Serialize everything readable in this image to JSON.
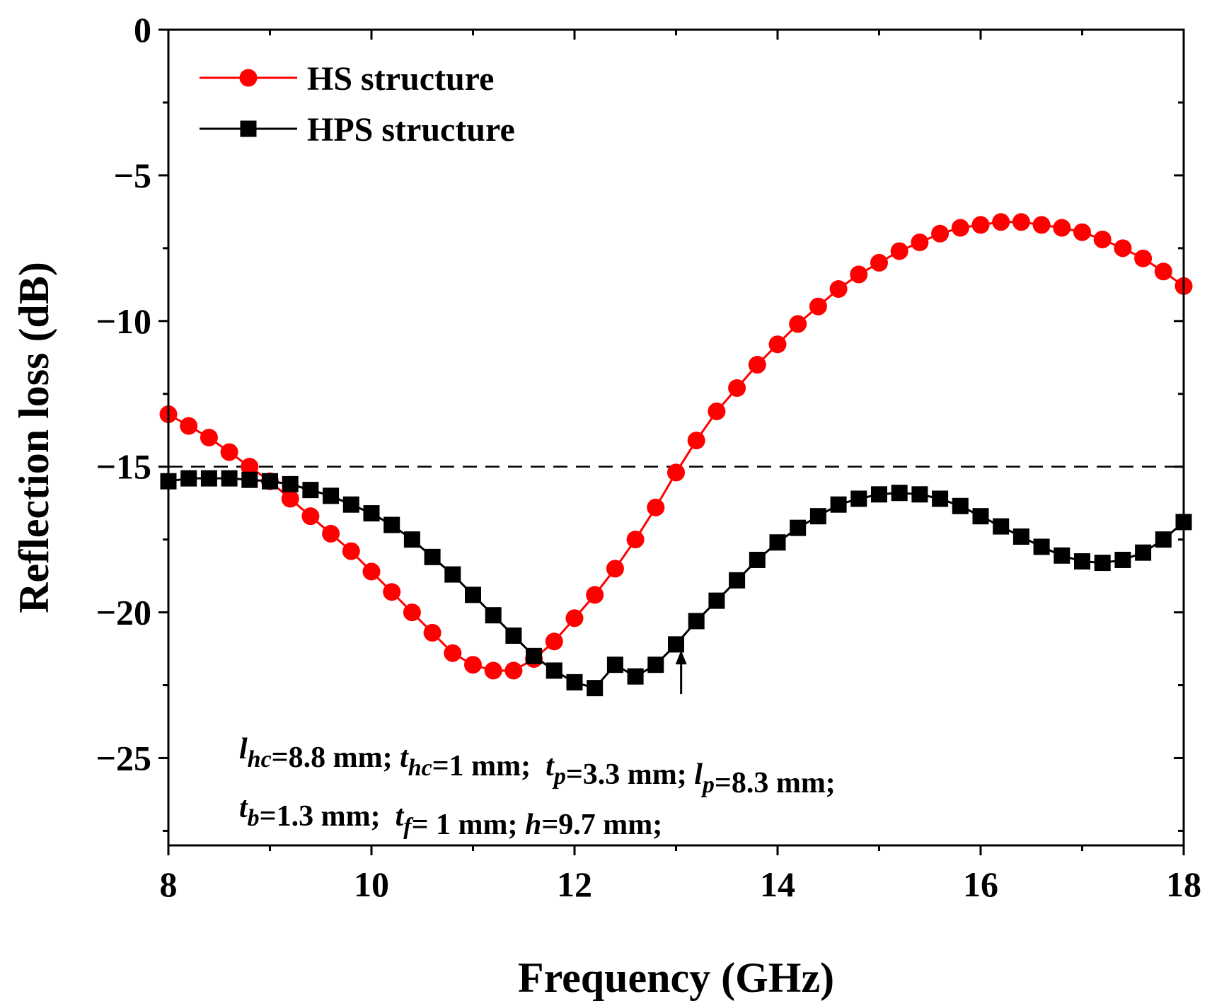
{
  "chart_data": {
    "type": "line",
    "xlabel": "Frequency (GHz)",
    "ylabel": "Reflection loss (dB)",
    "xlim": [
      8,
      18
    ],
    "ylim": [
      -28,
      0
    ],
    "xticks": [
      8,
      10,
      12,
      14,
      16,
      18
    ],
    "xtick_labels": [
      "8",
      "10",
      "12",
      "14",
      "16",
      "18"
    ],
    "yticks": [
      0,
      -5,
      -10,
      -15,
      -20,
      -25
    ],
    "ytick_labels": [
      "0",
      "−5",
      "−10",
      "−15",
      "−20",
      "−25"
    ],
    "reference_line": {
      "y": -15,
      "style": "dashed",
      "color": "#000000"
    },
    "legend_position": "top-left",
    "colors": {
      "hs": "#ff0000",
      "hps": "#000000"
    },
    "series": [
      {
        "name": "HS structure",
        "marker": "circle",
        "x": [
          8.0,
          8.2,
          8.4,
          8.6,
          8.8,
          9.0,
          9.2,
          9.4,
          9.6,
          9.8,
          10.0,
          10.2,
          10.4,
          10.6,
          10.8,
          11.0,
          11.2,
          11.4,
          11.6,
          11.8,
          12.0,
          12.2,
          12.4,
          12.6,
          12.8,
          13.0,
          13.2,
          13.4,
          13.6,
          13.8,
          14.0,
          14.2,
          14.4,
          14.6,
          14.8,
          15.0,
          15.2,
          15.4,
          15.6,
          15.8,
          16.0,
          16.2,
          16.4,
          16.6,
          16.8,
          17.0,
          17.2,
          17.4,
          17.6,
          17.8,
          18.0
        ],
        "values": [
          -13.2,
          -13.6,
          -14.0,
          -14.5,
          -15.0,
          -15.5,
          -16.1,
          -16.7,
          -17.3,
          -17.9,
          -18.6,
          -19.3,
          -20.0,
          -20.7,
          -21.4,
          -21.8,
          -22.0,
          -22.0,
          -21.6,
          -21.0,
          -20.2,
          -19.4,
          -18.5,
          -17.5,
          -16.4,
          -15.2,
          -14.1,
          -13.1,
          -12.3,
          -11.5,
          -10.8,
          -10.1,
          -9.5,
          -8.9,
          -8.4,
          -8.0,
          -7.6,
          -7.3,
          -7.0,
          -6.8,
          -6.7,
          -6.6,
          -6.6,
          -6.7,
          -6.8,
          -6.95,
          -7.2,
          -7.5,
          -7.85,
          -8.3,
          -8.8
        ]
      },
      {
        "name": "HPS structure",
        "marker": "square",
        "x": [
          8.0,
          8.2,
          8.4,
          8.6,
          8.8,
          9.0,
          9.2,
          9.4,
          9.6,
          9.8,
          10.0,
          10.2,
          10.4,
          10.6,
          10.8,
          11.0,
          11.2,
          11.4,
          11.6,
          11.8,
          12.0,
          12.2,
          12.4,
          12.6,
          12.8,
          13.0,
          13.2,
          13.4,
          13.6,
          13.8,
          14.0,
          14.2,
          14.4,
          14.6,
          14.8,
          15.0,
          15.2,
          15.4,
          15.6,
          15.8,
          16.0,
          16.2,
          16.4,
          16.6,
          16.8,
          17.0,
          17.2,
          17.4,
          17.6,
          17.8,
          18.0
        ],
        "values": [
          -15.5,
          -15.4,
          -15.4,
          -15.4,
          -15.45,
          -15.5,
          -15.6,
          -15.8,
          -16.0,
          -16.3,
          -16.6,
          -17.0,
          -17.5,
          -18.1,
          -18.7,
          -19.4,
          -20.1,
          -20.8,
          -21.5,
          -22.0,
          -22.4,
          -22.6,
          -21.8,
          -22.2,
          -21.8,
          -21.1,
          -20.3,
          -19.6,
          -18.9,
          -18.2,
          -17.6,
          -17.1,
          -16.7,
          -16.3,
          -16.1,
          -15.95,
          -15.9,
          -15.95,
          -16.1,
          -16.35,
          -16.7,
          -17.05,
          -17.4,
          -17.75,
          -18.05,
          -18.25,
          -18.3,
          -18.2,
          -17.95,
          -17.5,
          -16.9
        ]
      }
    ],
    "annotations": [
      {
        "arrow_at": {
          "x": 13.05,
          "y": -21.3
        }
      },
      {
        "line": 1,
        "parts": [
          {
            "t": "l",
            "i": true
          },
          {
            "t": "hc",
            "i": true,
            "sub": true
          },
          {
            "t": "=8.8 mm; "
          },
          {
            "t": "t",
            "i": true
          },
          {
            "t": "hc",
            "i": true,
            "sub": true
          },
          {
            "t": "=1 mm;  "
          },
          {
            "t": "t",
            "i": true
          },
          {
            "t": "p",
            "i": true,
            "sub": true
          },
          {
            "t": "=3.3 mm; "
          },
          {
            "t": "l",
            "i": true
          },
          {
            "t": "p",
            "i": true,
            "sub": true
          },
          {
            "t": "=8.3 mm;"
          }
        ]
      },
      {
        "line": 2,
        "parts": [
          {
            "t": "t",
            "i": true
          },
          {
            "t": "b",
            "i": true,
            "sub": true
          },
          {
            "t": "=1.3 mm;  "
          },
          {
            "t": "t",
            "i": true
          },
          {
            "t": "f",
            "i": true,
            "sub": true
          },
          {
            "t": "= 1 mm; "
          },
          {
            "t": "h",
            "i": true
          },
          {
            "t": "=9.7 mm;"
          }
        ]
      }
    ]
  }
}
